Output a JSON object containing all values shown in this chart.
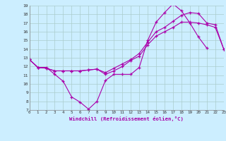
{
  "xlabel": "Windchill (Refroidissement éolien,°C)",
  "bg_color": "#cceeff",
  "line_color": "#aa00aa",
  "grid_color": "#aacccc",
  "xlim": [
    0,
    23
  ],
  "ylim": [
    7,
    19
  ],
  "xticks": [
    0,
    1,
    2,
    3,
    4,
    5,
    6,
    7,
    8,
    9,
    10,
    11,
    12,
    13,
    14,
    15,
    16,
    17,
    18,
    19,
    20,
    21,
    22,
    23
  ],
  "yticks": [
    7,
    8,
    9,
    10,
    11,
    12,
    13,
    14,
    15,
    16,
    17,
    18,
    19
  ],
  "line1_x": [
    0,
    1,
    2,
    3,
    4,
    5,
    6,
    7,
    8,
    9,
    10,
    11,
    12,
    13,
    14,
    15,
    16,
    17,
    18,
    19,
    20,
    21
  ],
  "line1_y": [
    12.8,
    11.9,
    11.9,
    11.1,
    10.3,
    8.5,
    7.9,
    7.1,
    8.0,
    10.4,
    11.1,
    11.1,
    11.1,
    11.9,
    15.0,
    17.1,
    18.2,
    19.2,
    18.4,
    17.0,
    15.4,
    14.1
  ],
  "line2_x": [
    0,
    1,
    2,
    3,
    4,
    5,
    6,
    7,
    8,
    9,
    10,
    11,
    12,
    13,
    14,
    15,
    16,
    17,
    18,
    19,
    20,
    21,
    22,
    23
  ],
  "line2_y": [
    12.8,
    11.9,
    11.8,
    11.5,
    11.5,
    11.5,
    11.5,
    11.6,
    11.7,
    11.1,
    11.5,
    12.0,
    12.7,
    13.2,
    14.5,
    15.5,
    16.0,
    16.5,
    17.1,
    17.1,
    17.0,
    16.8,
    16.5,
    14.0
  ],
  "line3_x": [
    0,
    1,
    2,
    3,
    4,
    5,
    6,
    7,
    8,
    9,
    10,
    11,
    12,
    13,
    14,
    15,
    16,
    17,
    18,
    19,
    20,
    21,
    22,
    23
  ],
  "line3_y": [
    12.8,
    11.9,
    11.8,
    11.5,
    11.5,
    11.5,
    11.5,
    11.6,
    11.7,
    11.3,
    11.8,
    12.3,
    12.8,
    13.5,
    14.8,
    16.0,
    16.5,
    17.2,
    17.9,
    18.2,
    18.1,
    17.0,
    16.8,
    14.0
  ]
}
